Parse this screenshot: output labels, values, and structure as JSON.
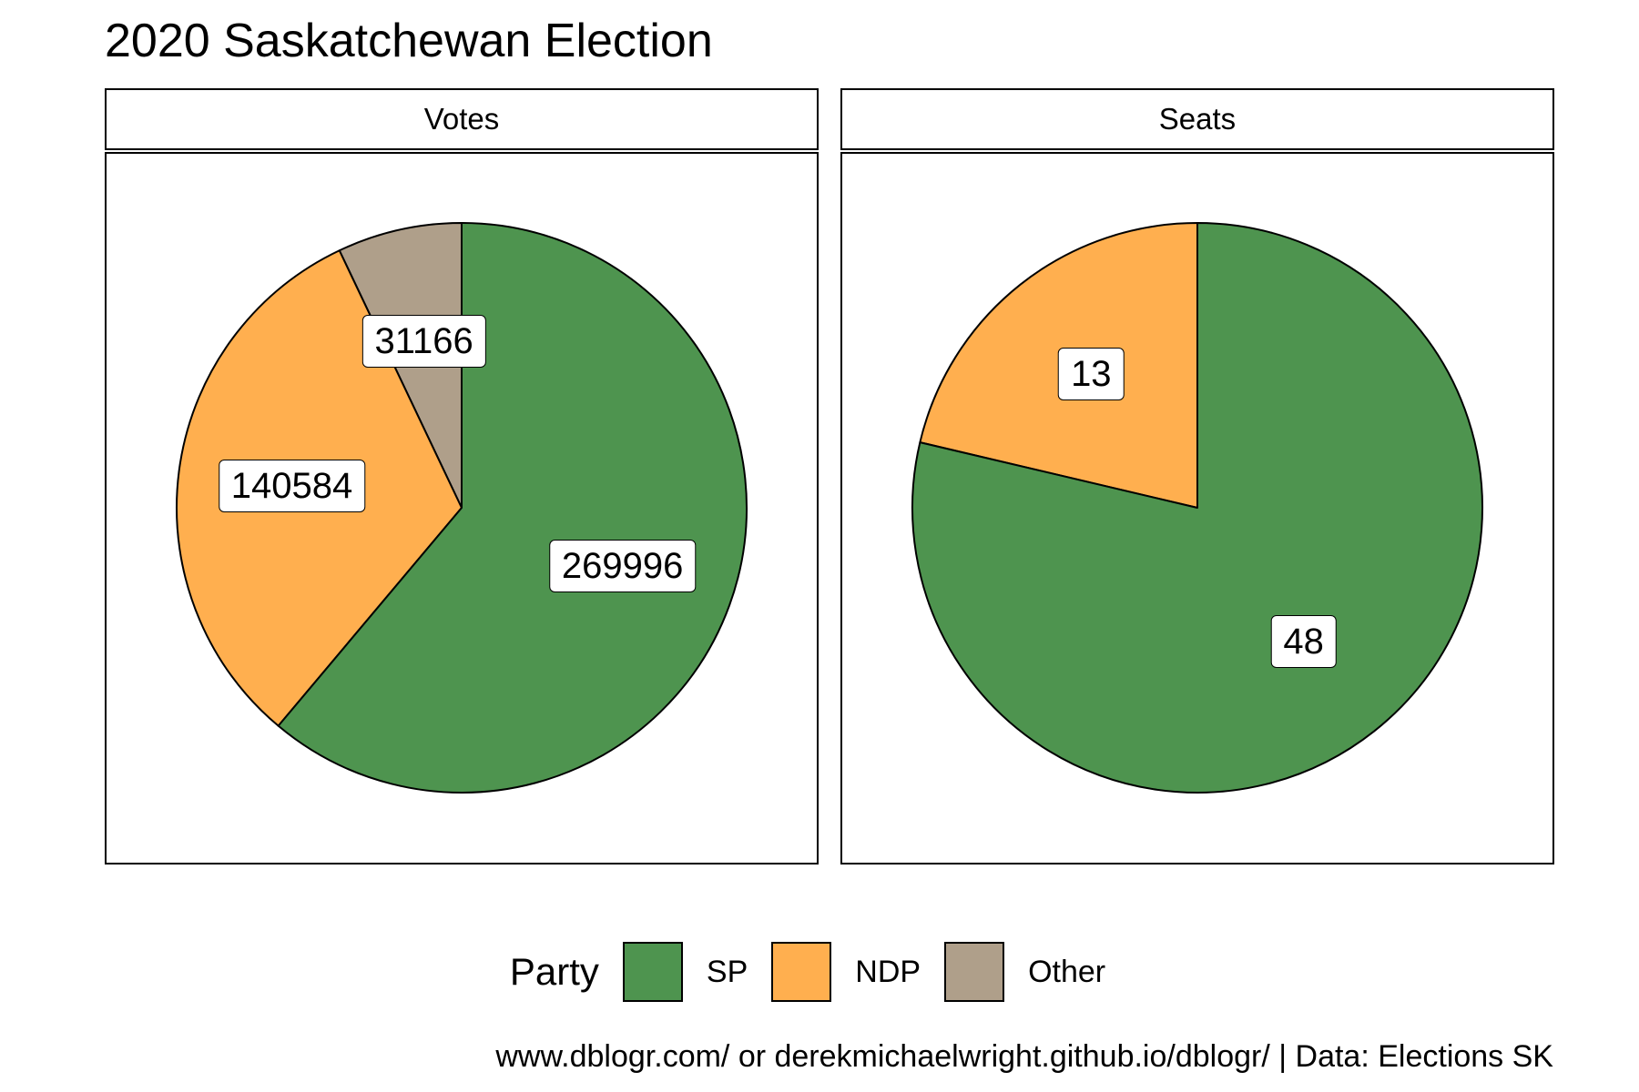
{
  "title": "2020 Saskatchewan Election",
  "caption": "www.dblogr.com/ or derekmichaelwright.github.io/dblogr/ | Data: Elections SK",
  "legend": {
    "title": "Party",
    "entries": [
      {
        "label": "SP",
        "color": "#4E944F"
      },
      {
        "label": "NDP",
        "color": "#FFAF4F"
      },
      {
        "label": "Other",
        "color": "#AF9F8A"
      }
    ],
    "placement": "bottom"
  },
  "chart_data": [
    {
      "type": "pie",
      "facet": "Votes",
      "categories": [
        "SP",
        "NDP",
        "Other"
      ],
      "values": [
        269996,
        140584,
        31166
      ],
      "colors": [
        "#4E944F",
        "#FFAF4F",
        "#AF9F8A"
      ]
    },
    {
      "type": "pie",
      "facet": "Seats",
      "categories": [
        "SP",
        "NDP",
        "Other"
      ],
      "values": [
        48,
        13,
        0
      ],
      "colors": [
        "#4E944F",
        "#FFAF4F",
        "#AF9F8A"
      ]
    }
  ]
}
